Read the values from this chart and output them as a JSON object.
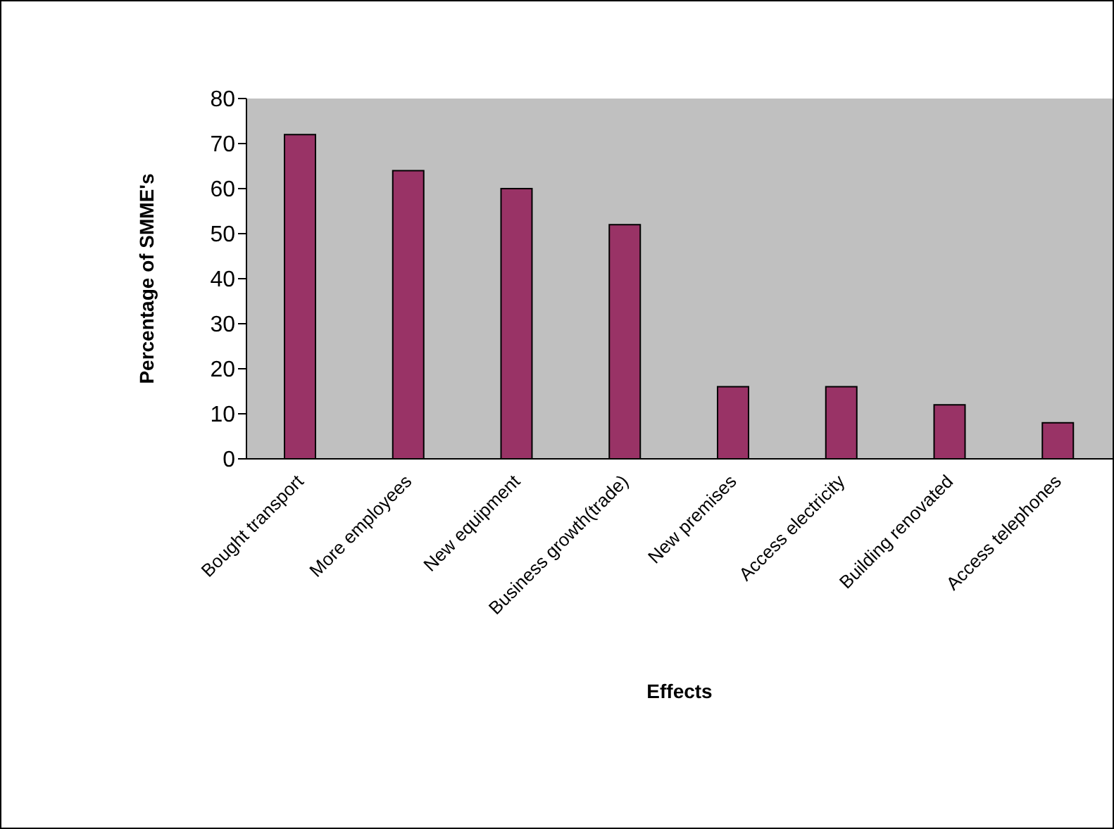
{
  "chart_data": {
    "type": "bar",
    "xlabel": "Effects",
    "ylabel": "Percentage of SMME's",
    "categories": [
      "Bought transport",
      "More employees",
      "New equipment",
      "Business growth(trade)",
      "New premises",
      "Access electricity",
      "Building renovated",
      "Access telephones"
    ],
    "values": [
      72,
      64,
      60,
      52,
      16,
      16,
      12,
      8
    ],
    "color": "#993366",
    "ylim": [
      0,
      80
    ],
    "yticks": [
      0,
      10,
      20,
      30,
      40,
      50,
      60,
      70,
      80
    ]
  }
}
